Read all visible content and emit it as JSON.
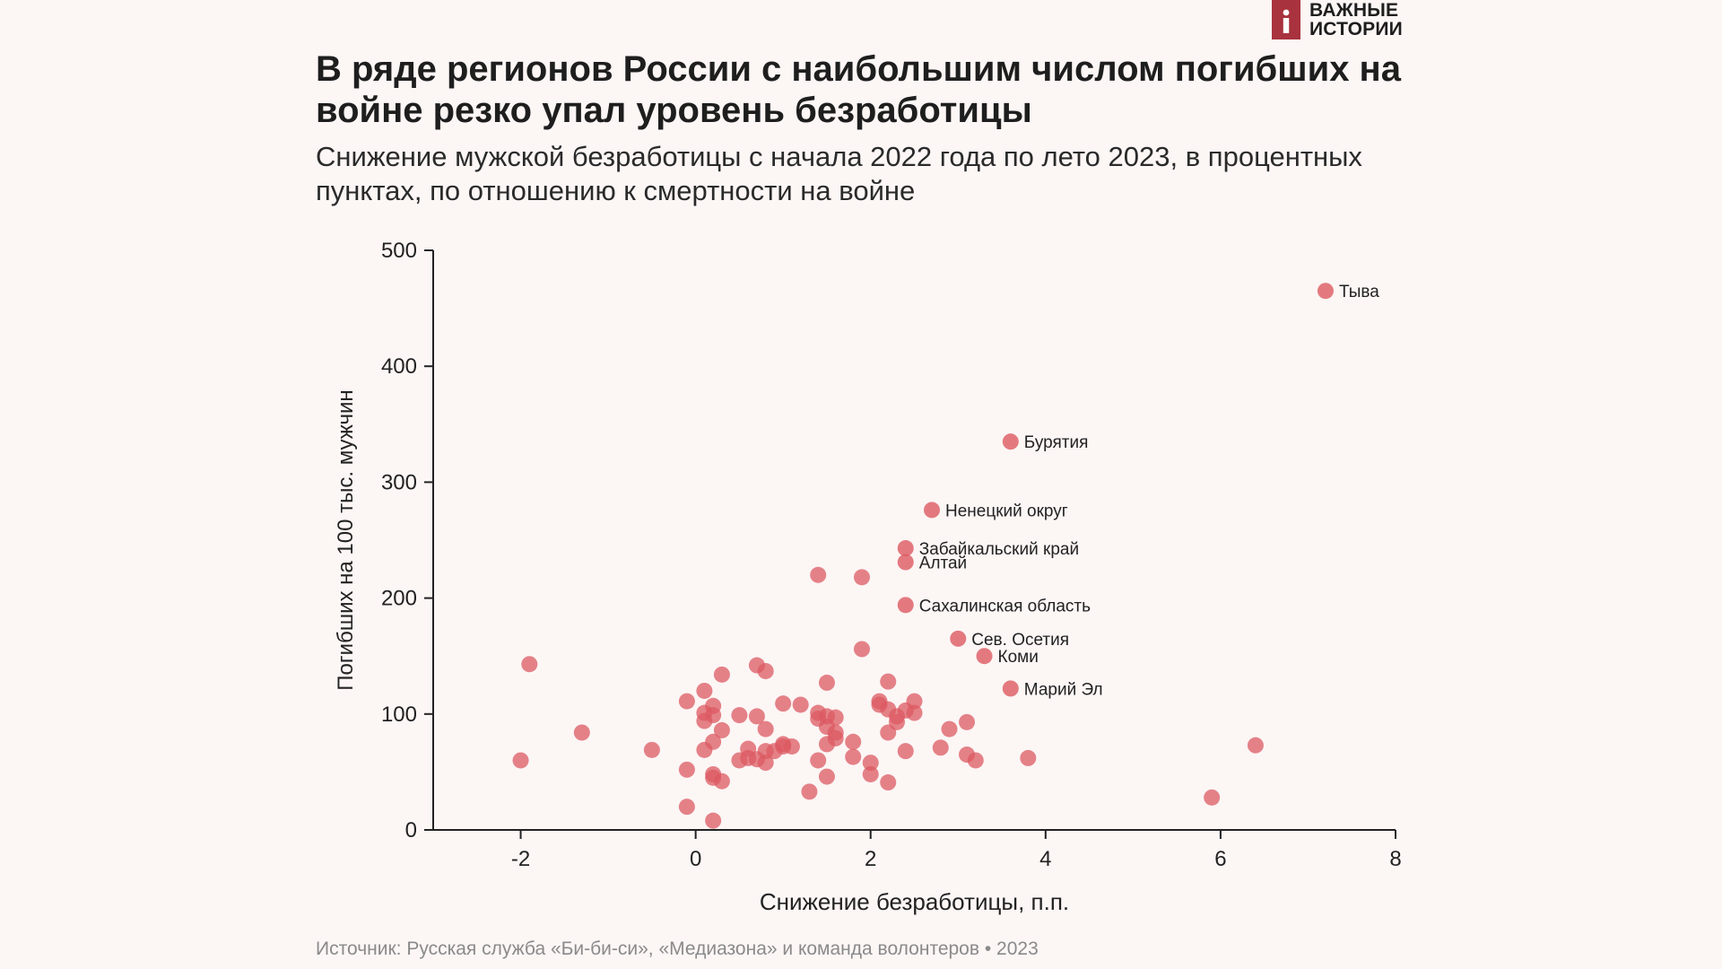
{
  "brand": {
    "line1": "ВАЖНЫЕ",
    "line2": "ИСТОРИИ",
    "color": "#a8323d"
  },
  "header": {
    "title": "В ряде регионов России с наибольшим числом погибших на войне резко упал уровень безработицы",
    "subtitle": "Снижение мужской безработицы с начала 2022 года по лето 2023, в процентных пунктах, по отношению к смертности на войне"
  },
  "footer": {
    "source": "Источник: Русская служба «Би-би-си», «Медиазона» и команда волонтеров • 2023"
  },
  "chart_data": {
    "type": "scatter",
    "xlabel": "Снижение безработицы, п.п.",
    "ylabel": "Погибших на 100 тыс. мужчин",
    "xlim": [
      -3,
      8
    ],
    "ylim": [
      0,
      500
    ],
    "xticks": [
      -2,
      0,
      2,
      4,
      6,
      8
    ],
    "xtick_labels": [
      "-2",
      "0",
      "2",
      "4",
      "6",
      "8"
    ],
    "yticks": [
      0,
      100,
      200,
      300,
      400,
      500
    ],
    "ytick_labels": [
      "0",
      "100",
      "200",
      "300",
      "400",
      "500"
    ],
    "point_color": "#dc5a62",
    "labeled_points": [
      {
        "label": "Тыва",
        "x": 7.2,
        "y": 465
      },
      {
        "label": "Бурятия",
        "x": 3.6,
        "y": 335
      },
      {
        "label": "Ненецкий округ",
        "x": 2.7,
        "y": 276
      },
      {
        "label": "Забайкальский край",
        "x": 2.4,
        "y": 243
      },
      {
        "label": "Алтай",
        "x": 2.4,
        "y": 231
      },
      {
        "label": "Сахалинская область",
        "x": 2.4,
        "y": 194
      },
      {
        "label": "Сев. Осетия",
        "x": 3.0,
        "y": 165
      },
      {
        "label": "Коми",
        "x": 3.3,
        "y": 150
      },
      {
        "label": "Марий Эл",
        "x": 3.6,
        "y": 122
      }
    ],
    "points": [
      {
        "x": -1.9,
        "y": 143
      },
      {
        "x": -2.0,
        "y": 60
      },
      {
        "x": -1.3,
        "y": 84
      },
      {
        "x": -0.5,
        "y": 69
      },
      {
        "x": 5.9,
        "y": 28
      },
      {
        "x": 6.4,
        "y": 73
      },
      {
        "x": 3.8,
        "y": 62
      },
      {
        "x": 1.4,
        "y": 220
      },
      {
        "x": 1.9,
        "y": 218
      },
      {
        "x": 1.9,
        "y": 156
      },
      {
        "x": 0.7,
        "y": 142
      },
      {
        "x": 0.8,
        "y": 137
      },
      {
        "x": 0.3,
        "y": 134
      },
      {
        "x": 1.5,
        "y": 127
      },
      {
        "x": 2.2,
        "y": 128
      },
      {
        "x": 0.1,
        "y": 120
      },
      {
        "x": -0.1,
        "y": 111
      },
      {
        "x": 0.2,
        "y": 107
      },
      {
        "x": 1.0,
        "y": 109
      },
      {
        "x": 1.2,
        "y": 108
      },
      {
        "x": 2.1,
        "y": 111
      },
      {
        "x": 2.1,
        "y": 108
      },
      {
        "x": 2.5,
        "y": 111
      },
      {
        "x": 2.2,
        "y": 104
      },
      {
        "x": 2.4,
        "y": 103
      },
      {
        "x": 0.1,
        "y": 101
      },
      {
        "x": 0.2,
        "y": 99
      },
      {
        "x": 0.5,
        "y": 99
      },
      {
        "x": 0.7,
        "y": 98
      },
      {
        "x": 1.4,
        "y": 101
      },
      {
        "x": 1.5,
        "y": 98
      },
      {
        "x": 1.6,
        "y": 97
      },
      {
        "x": 2.3,
        "y": 98
      },
      {
        "x": 2.5,
        "y": 101
      },
      {
        "x": 0.1,
        "y": 94
      },
      {
        "x": 1.4,
        "y": 96
      },
      {
        "x": 2.3,
        "y": 93
      },
      {
        "x": 3.1,
        "y": 93
      },
      {
        "x": 0.3,
        "y": 86
      },
      {
        "x": 0.8,
        "y": 87
      },
      {
        "x": 1.5,
        "y": 89
      },
      {
        "x": 1.6,
        "y": 84
      },
      {
        "x": 2.2,
        "y": 84
      },
      {
        "x": 2.9,
        "y": 87
      },
      {
        "x": 0.2,
        "y": 76
      },
      {
        "x": 1.0,
        "y": 74
      },
      {
        "x": 1.6,
        "y": 79
      },
      {
        "x": 1.5,
        "y": 74
      },
      {
        "x": 1.8,
        "y": 76
      },
      {
        "x": 1.0,
        "y": 72
      },
      {
        "x": 1.1,
        "y": 72
      },
      {
        "x": 0.1,
        "y": 69
      },
      {
        "x": 0.6,
        "y": 70
      },
      {
        "x": 0.8,
        "y": 68
      },
      {
        "x": 0.9,
        "y": 68
      },
      {
        "x": 2.4,
        "y": 68
      },
      {
        "x": 2.8,
        "y": 71
      },
      {
        "x": 0.5,
        "y": 60
      },
      {
        "x": 0.6,
        "y": 62
      },
      {
        "x": 0.7,
        "y": 61
      },
      {
        "x": 0.8,
        "y": 58
      },
      {
        "x": 1.4,
        "y": 60
      },
      {
        "x": 1.8,
        "y": 63
      },
      {
        "x": 2.0,
        "y": 58
      },
      {
        "x": 3.1,
        "y": 65
      },
      {
        "x": 3.2,
        "y": 60
      },
      {
        "x": -0.1,
        "y": 52
      },
      {
        "x": 0.2,
        "y": 48
      },
      {
        "x": 0.2,
        "y": 45
      },
      {
        "x": 0.3,
        "y": 42
      },
      {
        "x": 1.5,
        "y": 46
      },
      {
        "x": 2.0,
        "y": 48
      },
      {
        "x": 2.2,
        "y": 41
      },
      {
        "x": 1.3,
        "y": 33
      },
      {
        "x": -0.1,
        "y": 20
      },
      {
        "x": 0.2,
        "y": 8
      }
    ]
  }
}
